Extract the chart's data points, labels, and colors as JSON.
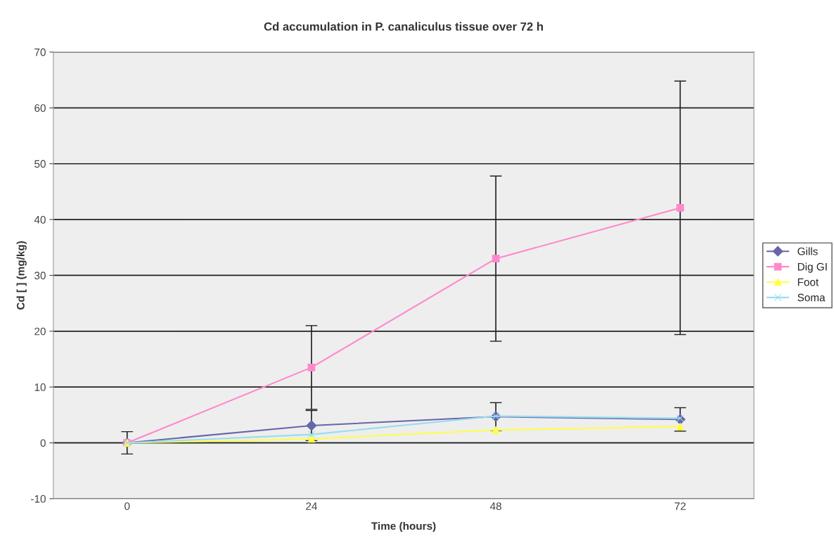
{
  "chart_data": {
    "type": "line",
    "title": "Cd accumulation in P. canaliculus tissue over 72 h",
    "xlabel": "Time (hours)",
    "ylabel": "Cd [ ] (mg/kg)",
    "categories": [
      "0",
      "24",
      "48",
      "72"
    ],
    "series": [
      {
        "name": "Gills",
        "color": "#6666aa",
        "marker": "diamond",
        "values": [
          0,
          3.1,
          4.7,
          4.2
        ],
        "errors": [
          2,
          2.7,
          2.5,
          2.1
        ]
      },
      {
        "name": "Dig GI",
        "color": "#ff88cc",
        "marker": "square",
        "values": [
          0,
          13.5,
          33,
          42.1
        ],
        "errors": [
          null,
          7.5,
          14.8,
          22.7
        ]
      },
      {
        "name": "Foot",
        "color": "#ffff44",
        "marker": "triangle",
        "values": [
          0,
          0.7,
          2.3,
          2.9
        ]
      },
      {
        "name": "Soma",
        "color": "#99ddee",
        "marker": "cross",
        "values": [
          0,
          1.5,
          4.8,
          4.4
        ]
      }
    ],
    "ylim": [
      -10,
      70
    ],
    "yticks": [
      -10,
      0,
      10,
      20,
      30,
      40,
      50,
      60,
      70
    ],
    "grid": "y",
    "legend": "right"
  }
}
